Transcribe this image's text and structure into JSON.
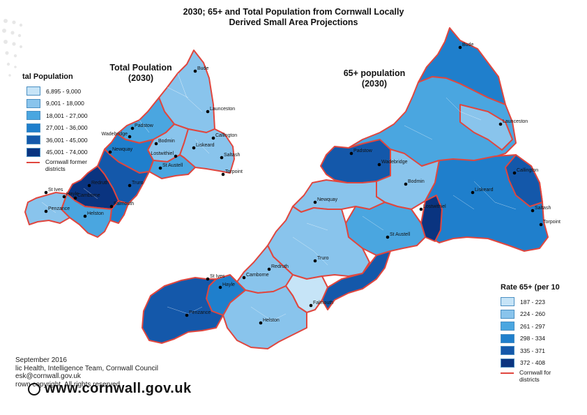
{
  "title_line1": "2030; 65+ and Total Population from Cornwall Locally",
  "title_line2": "Derived Small Area Projections",
  "left_map": {
    "title_line1": "Total Poulation",
    "title_line2": "(2030)",
    "legend_title": "tal Population",
    "legend": [
      {
        "label": "6,895 - 9,000",
        "color": "#c6e4f7"
      },
      {
        "label": "9,001 - 18,000",
        "color": "#89c4ec"
      },
      {
        "label": "18,001 - 27,000",
        "color": "#4aa6e0"
      },
      {
        "label": "27,001 - 36,000",
        "color": "#1f7fcc"
      },
      {
        "label": "36,001 - 45,000",
        "color": "#1458aa"
      },
      {
        "label": "45,001 - 74,000",
        "color": "#0a3480"
      }
    ],
    "boundary_label_1": "Cornwall former",
    "boundary_label_2": "districts",
    "places": [
      "Bude",
      "Launceston",
      "Padstow",
      "Wadebridge",
      "Callington",
      "Bodmin",
      "Liskeard",
      "Newquay",
      "Lostwithiel",
      "Saltash",
      "St Austell",
      "Torpoint",
      "Truro",
      "Redruth",
      "St Ives",
      "Hayle",
      "Camborne",
      "Falmouth",
      "Penzance",
      "Helston"
    ]
  },
  "right_map": {
    "title_line1": "65+ population",
    "title_line2": "(2030)",
    "legend_title": "Rate 65+ (per 10",
    "legend": [
      {
        "label": "187 - 223",
        "color": "#c6e4f7"
      },
      {
        "label": "224 - 260",
        "color": "#89c4ec"
      },
      {
        "label": "261 - 297",
        "color": "#4aa6e0"
      },
      {
        "label": "298 - 334",
        "color": "#1f7fcc"
      },
      {
        "label": "335 - 371",
        "color": "#1458aa"
      },
      {
        "label": "372 - 408",
        "color": "#0a3480"
      }
    ],
    "boundary_label_1": "Cornwall for",
    "boundary_label_2": "districts",
    "places": [
      "Bude",
      "Launceston",
      "Padstow",
      "Wadebridge",
      "Callington",
      "Bodmin",
      "Liskeard",
      "Newquay",
      "Lostwithiel",
      "Saltash",
      "Torpoint",
      "St Austell",
      "Truro",
      "Redruth",
      "Camborne",
      "St Ives",
      "Hayle",
      "Falmouth",
      "Penzance",
      "Helston"
    ]
  },
  "footer": {
    "line1": "September 2016",
    "line2": "lic Health, Intelligence Team, Cornwall Council",
    "line3": "esk@cornwall.gov.uk",
    "line4": "rown copyright. All rights reserved",
    "url": "www.cornwall.gov.uk"
  },
  "colors": {
    "boundary": "#e0463e",
    "light": "#c6e4f7",
    "mid": "#4aa6e0",
    "dark": "#0a3480"
  }
}
